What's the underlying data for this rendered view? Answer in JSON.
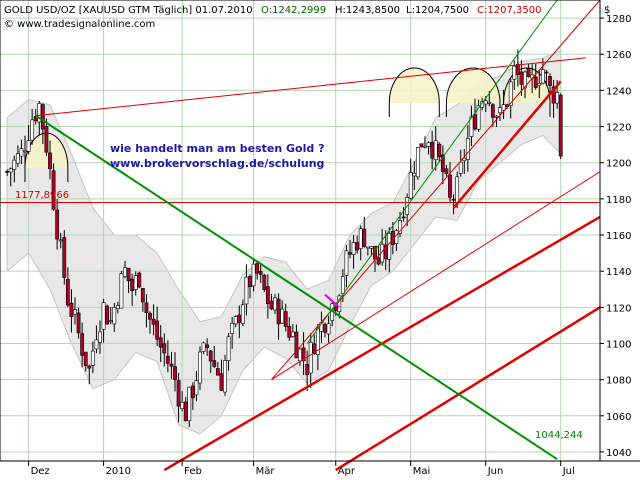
{
  "header": {
    "title": "GOLD USD/OZ [XAUUSD GTM  Täglich] 01.07.2010",
    "open": "O:1242,2999",
    "high": "H:1243,8500",
    "low": "L:1204,7500",
    "close": "C:1207,3500",
    "copyright": "© www.tradesignalonline.com",
    "currency": "$"
  },
  "annotations": {
    "line1": "wie handelt man am besten Gold ?",
    "line2": "www.brokervorschlag.de/schulung",
    "level_label": "1177,8966",
    "target_label": "1044,244"
  },
  "colors": {
    "background": "#ffffff",
    "grid": "#b5d6b5",
    "candle_up": "#ffffff",
    "candle_down": "#b0002a",
    "bollinger_fill": "#e8e8e8",
    "trend_red": "#e00000",
    "trend_green": "#009000",
    "annotation_text": "#1a1aa8",
    "highlight_fill": "#f5f2c8"
  },
  "chart_data": {
    "type": "candlestick",
    "title": "GOLD USD/OZ [XAUUSD GTM  Täglich] 01.07.2010",
    "ylim": [
      1035,
      1290
    ],
    "y_ticks": [
      1040,
      1060,
      1080,
      1100,
      1120,
      1140,
      1160,
      1180,
      1200,
      1220,
      1240,
      1260,
      1280
    ],
    "x_ticks": [
      {
        "label": "Dez",
        "day": 2
      },
      {
        "label": "2010",
        "day": 23
      },
      {
        "label": "Feb",
        "day": 45
      },
      {
        "label": "Mär",
        "day": 65
      },
      {
        "label": "Apr",
        "day": 88
      },
      {
        "label": "Mai",
        "day": 109
      },
      {
        "label": "Jun",
        "day": 130
      },
      {
        "label": "Jul",
        "day": 151
      }
    ],
    "x_range_days": [
      -6,
      162
    ],
    "grid": true,
    "close_path": [
      [
        -4,
        1195
      ],
      [
        0,
        1205
      ],
      [
        3,
        1225
      ],
      [
        5,
        1232
      ],
      [
        7,
        1210
      ],
      [
        9,
        1180
      ],
      [
        11,
        1150
      ],
      [
        13,
        1125
      ],
      [
        15,
        1112
      ],
      [
        17,
        1098
      ],
      [
        19,
        1085
      ],
      [
        21,
        1108
      ],
      [
        23,
        1120
      ],
      [
        25,
        1112
      ],
      [
        27,
        1128
      ],
      [
        29,
        1140
      ],
      [
        31,
        1130
      ],
      [
        33,
        1138
      ],
      [
        35,
        1118
      ],
      [
        37,
        1108
      ],
      [
        39,
        1098
      ],
      [
        41,
        1090
      ],
      [
        43,
        1080
      ],
      [
        45,
        1065
      ],
      [
        46,
        1062
      ],
      [
        48,
        1075
      ],
      [
        50,
        1090
      ],
      [
        52,
        1098
      ],
      [
        54,
        1088
      ],
      [
        56,
        1080
      ],
      [
        58,
        1100
      ],
      [
        60,
        1110
      ],
      [
        62,
        1125
      ],
      [
        64,
        1135
      ],
      [
        66,
        1138
      ],
      [
        68,
        1128
      ],
      [
        70,
        1120
      ],
      [
        72,
        1118
      ],
      [
        74,
        1110
      ],
      [
        76,
        1105
      ],
      [
        78,
        1095
      ],
      [
        80,
        1088
      ],
      [
        82,
        1102
      ],
      [
        84,
        1110
      ],
      [
        86,
        1118
      ],
      [
        88,
        1125
      ],
      [
        90,
        1140
      ],
      [
        92,
        1150
      ],
      [
        94,
        1158
      ],
      [
        96,
        1160
      ],
      [
        98,
        1150
      ],
      [
        100,
        1145
      ],
      [
        102,
        1150
      ],
      [
        104,
        1160
      ],
      [
        106,
        1170
      ],
      [
        108,
        1185
      ],
      [
        110,
        1200
      ],
      [
        112,
        1212
      ],
      [
        114,
        1215
      ],
      [
        116,
        1205
      ],
      [
        118,
        1195
      ],
      [
        120,
        1178
      ],
      [
        122,
        1185
      ],
      [
        124,
        1205
      ],
      [
        126,
        1220
      ],
      [
        128,
        1232
      ],
      [
        130,
        1240
      ],
      [
        132,
        1232
      ],
      [
        134,
        1225
      ],
      [
        136,
        1235
      ],
      [
        138,
        1250
      ],
      [
        140,
        1245
      ],
      [
        142,
        1240
      ],
      [
        144,
        1248
      ],
      [
        146,
        1252
      ],
      [
        148,
        1240
      ],
      [
        150,
        1238
      ],
      [
        151,
        1207
      ]
    ],
    "bollinger": {
      "upper": [
        [
          -4,
          1225
        ],
        [
          2,
          1235
        ],
        [
          8,
          1232
        ],
        [
          14,
          1205
        ],
        [
          20,
          1175
        ],
        [
          26,
          1160
        ],
        [
          32,
          1160
        ],
        [
          38,
          1150
        ],
        [
          44,
          1130
        ],
        [
          50,
          1112
        ],
        [
          56,
          1115
        ],
        [
          62,
          1138
        ],
        [
          68,
          1148
        ],
        [
          74,
          1145
        ],
        [
          80,
          1130
        ],
        [
          86,
          1135
        ],
        [
          92,
          1160
        ],
        [
          98,
          1172
        ],
        [
          104,
          1178
        ],
        [
          110,
          1200
        ],
        [
          116,
          1225
        ],
        [
          122,
          1232
        ],
        [
          128,
          1244
        ],
        [
          134,
          1248
        ],
        [
          140,
          1256
        ],
        [
          146,
          1258
        ],
        [
          151,
          1262
        ]
      ],
      "lower": [
        [
          -4,
          1140
        ],
        [
          2,
          1150
        ],
        [
          8,
          1130
        ],
        [
          14,
          1100
        ],
        [
          20,
          1075
        ],
        [
          26,
          1080
        ],
        [
          32,
          1095
        ],
        [
          38,
          1090
        ],
        [
          44,
          1055
        ],
        [
          50,
          1050
        ],
        [
          56,
          1060
        ],
        [
          62,
          1085
        ],
        [
          68,
          1098
        ],
        [
          74,
          1092
        ],
        [
          80,
          1078
        ],
        [
          86,
          1085
        ],
        [
          92,
          1110
        ],
        [
          98,
          1132
        ],
        [
          104,
          1140
        ],
        [
          110,
          1155
        ],
        [
          116,
          1170
        ],
        [
          122,
          1168
        ],
        [
          128,
          1190
        ],
        [
          134,
          1200
        ],
        [
          140,
          1210
        ],
        [
          146,
          1215
        ],
        [
          151,
          1205
        ]
      ]
    },
    "trend_lines": [
      {
        "color": "trend_red",
        "width": 1,
        "from": [
          4,
          1226
        ],
        "to": [
          158,
          1258
        ]
      },
      {
        "color": "trend_red",
        "width": 1,
        "from": [
          -6,
          1178
        ],
        "to": [
          162,
          1178
        ]
      },
      {
        "color": "trend_red",
        "width": 1,
        "from": [
          70,
          1080
        ],
        "to": [
          162,
          1290
        ]
      },
      {
        "color": "trend_red",
        "width": 1,
        "from": [
          70,
          1080
        ],
        "to": [
          162,
          1195
        ]
      },
      {
        "color": "trend_red",
        "width": 2.5,
        "from": [
          121,
          1175
        ],
        "to": [
          151,
          1245
        ]
      },
      {
        "color": "trend_red",
        "width": 2.5,
        "from": [
          40,
          1030
        ],
        "to": [
          162,
          1170
        ]
      },
      {
        "color": "trend_red",
        "width": 2.5,
        "from": [
          88,
          1030
        ],
        "to": [
          162,
          1120
        ]
      },
      {
        "color": "trend_green",
        "width": 2,
        "from": [
          4,
          1226
        ],
        "to": [
          150,
          1036
        ]
      },
      {
        "color": "trend_green",
        "width": 1,
        "from": [
          80,
          1100
        ],
        "to": [
          150,
          1290
        ]
      }
    ],
    "marker_line": {
      "color": "#e000e0",
      "from": [
        85,
        1127
      ],
      "to": [
        89,
        1120
      ]
    },
    "arcs": [
      {
        "from_day": 1,
        "to_day": 13,
        "base": 1197
      },
      {
        "from_day": 103,
        "to_day": 117,
        "base": 1233
      },
      {
        "from_day": 119,
        "to_day": 134,
        "base": 1233
      },
      {
        "from_day": 135,
        "to_day": 148,
        "base": 1233
      }
    ]
  }
}
